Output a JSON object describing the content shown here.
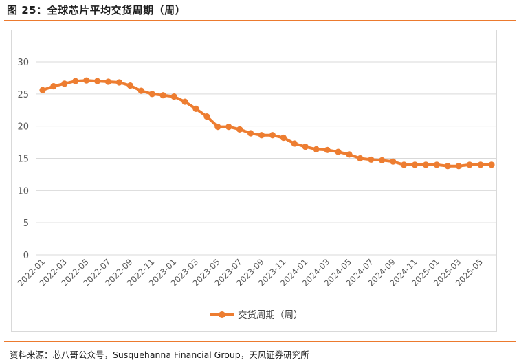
{
  "title": "图 25：全球芯片平均交货周期（周）",
  "source": "资料来源：芯八哥公众号，Susquehanna Financial Group，天风证券研究所",
  "colors": {
    "accent": "#ec7a2e",
    "series": "#ed7d31",
    "grid": "#d9d9d9",
    "text": "#595959"
  },
  "chart_data": {
    "type": "line",
    "title": "",
    "xlabel": "",
    "ylabel": "",
    "ylim": [
      0,
      30
    ],
    "yticks": [
      0,
      5,
      10,
      15,
      20,
      25,
      30
    ],
    "grid": true,
    "legend_position": "bottom",
    "x": [
      "2022-01",
      "2022-02",
      "2022-03",
      "2022-04",
      "2022-05",
      "2022-06",
      "2022-07",
      "2022-08",
      "2022-09",
      "2022-10",
      "2022-11",
      "2022-12",
      "2023-01",
      "2023-02",
      "2023-03",
      "2023-04",
      "2023-05",
      "2023-06",
      "2023-07",
      "2023-08",
      "2023-09",
      "2023-10",
      "2023-11",
      "2023-12",
      "2024-01",
      "2024-02",
      "2024-03",
      "2024-04",
      "2024-05",
      "2024-06",
      "2024-07",
      "2024-08",
      "2024-09",
      "2024-10",
      "2024-11",
      "2024-12",
      "2025-01",
      "2025-02",
      "2025-03",
      "2025-04",
      "2025-05",
      "2025-06"
    ],
    "xtick_labels": [
      "2022-01",
      "2022-03",
      "2022-05",
      "2022-07",
      "2022-09",
      "2022-11",
      "2023-01",
      "2023-03",
      "2023-05",
      "2023-07",
      "2023-09",
      "2023-11",
      "2024-01",
      "2024-03",
      "2024-05",
      "2024-07",
      "2024-09",
      "2024-11",
      "2025-01",
      "2025-03",
      "2025-05"
    ],
    "series": [
      {
        "name": "交货周期（周）",
        "values": [
          25.6,
          26.2,
          26.6,
          27.0,
          27.1,
          27.0,
          26.9,
          26.8,
          26.3,
          25.5,
          25.0,
          24.8,
          24.6,
          23.8,
          22.7,
          21.5,
          19.9,
          19.9,
          19.5,
          18.9,
          18.6,
          18.6,
          18.2,
          17.3,
          16.8,
          16.4,
          16.3,
          16.0,
          15.6,
          15.0,
          14.8,
          14.7,
          14.5,
          14.0,
          14.0,
          14.0,
          14.0,
          13.8,
          13.8,
          14.0,
          14.0,
          14.0
        ]
      }
    ]
  }
}
